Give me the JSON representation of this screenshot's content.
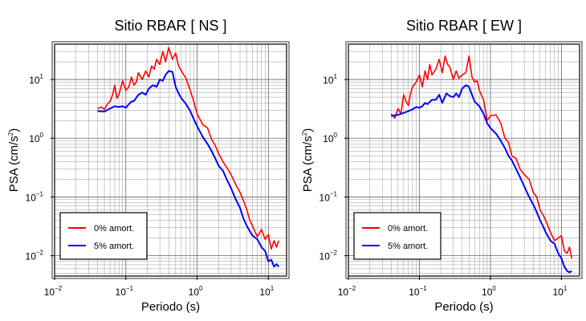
{
  "chart_data": [
    {
      "type": "line",
      "title": "Sitio RBAR [ NS ]",
      "xlabel": "Periodo (s)",
      "ylabel_main": "PSA (cm/s",
      "ylabel_sup": "2",
      "ylabel_end": ")",
      "xscale": "log",
      "yscale": "log",
      "xlim": [
        0.01,
        18
      ],
      "ylim": [
        0.0045,
        40
      ],
      "grid": true,
      "legend_position": "bottom-left",
      "x_ticks": [
        {
          "base": "10",
          "exp": "−2",
          "value": 0.01
        },
        {
          "base": "10",
          "exp": "−1",
          "value": 0.1
        },
        {
          "base": "10",
          "exp": "0",
          "value": 1
        },
        {
          "base": "10",
          "exp": "1",
          "value": 10
        }
      ],
      "y_ticks": [
        {
          "base": "10",
          "exp": "−2",
          "value": 0.01
        },
        {
          "base": "10",
          "exp": "−1",
          "value": 0.1
        },
        {
          "base": "10",
          "exp": "0",
          "value": 1
        },
        {
          "base": "10",
          "exp": "1",
          "value": 10
        }
      ],
      "series": [
        {
          "name": "0% amort.",
          "color": "#ff0000",
          "x": [
            0.04,
            0.045,
            0.05,
            0.055,
            0.06,
            0.065,
            0.07,
            0.075,
            0.08,
            0.09,
            0.1,
            0.11,
            0.12,
            0.13,
            0.14,
            0.15,
            0.17,
            0.19,
            0.21,
            0.23,
            0.25,
            0.27,
            0.3,
            0.33,
            0.36,
            0.4,
            0.45,
            0.5,
            0.55,
            0.6,
            0.65,
            0.7,
            0.8,
            0.9,
            1.0,
            1.2,
            1.4,
            1.6,
            1.8,
            2.0,
            2.3,
            2.6,
            3.0,
            3.5,
            4.0,
            4.5,
            5.0,
            5.5,
            6.0,
            7.0,
            8.0,
            9.0,
            10.0,
            11.0,
            12.0,
            13.0,
            14.0
          ],
          "y": [
            3.2,
            3.4,
            3.1,
            3.8,
            4.2,
            5.5,
            8.0,
            4.8,
            5.5,
            9.5,
            6.5,
            7.5,
            11.0,
            8.0,
            9.0,
            13.0,
            10.0,
            14.0,
            11.0,
            17.0,
            15.0,
            22.0,
            18.0,
            30.0,
            20.0,
            35.0,
            22.0,
            28.0,
            17.0,
            14.0,
            12.0,
            10.5,
            6.5,
            4.2,
            2.6,
            1.7,
            1.5,
            0.95,
            0.75,
            0.55,
            0.4,
            0.32,
            0.24,
            0.16,
            0.12,
            0.085,
            0.06,
            0.04,
            0.032,
            0.021,
            0.028,
            0.019,
            0.023,
            0.013,
            0.018,
            0.014,
            0.018
          ]
        },
        {
          "name": "5% amort.",
          "color": "#0000ff",
          "x": [
            0.04,
            0.05,
            0.06,
            0.07,
            0.08,
            0.09,
            0.1,
            0.11,
            0.12,
            0.13,
            0.15,
            0.17,
            0.19,
            0.21,
            0.24,
            0.27,
            0.3,
            0.33,
            0.36,
            0.4,
            0.45,
            0.5,
            0.55,
            0.6,
            0.7,
            0.8,
            0.9,
            1.0,
            1.2,
            1.4,
            1.6,
            1.8,
            2.0,
            2.3,
            2.6,
            3.0,
            3.5,
            4.0,
            4.5,
            5.0,
            5.5,
            6.0,
            7.0,
            8.0,
            9.0,
            10.0,
            11.0,
            12.0,
            13.0,
            14.0
          ],
          "y": [
            2.9,
            2.85,
            3.2,
            3.5,
            3.4,
            3.5,
            3.3,
            3.8,
            4.2,
            4.3,
            5.5,
            6.0,
            5.5,
            7.0,
            8.0,
            7.5,
            10.0,
            9.5,
            12.0,
            14.0,
            13.5,
            7.5,
            5.8,
            4.8,
            3.8,
            2.9,
            2.1,
            1.6,
            1.05,
            0.8,
            0.6,
            0.45,
            0.34,
            0.28,
            0.2,
            0.14,
            0.09,
            0.065,
            0.042,
            0.032,
            0.026,
            0.022,
            0.019,
            0.014,
            0.012,
            0.008,
            0.0085,
            0.0065,
            0.0072,
            0.0065
          ]
        }
      ]
    },
    {
      "type": "line",
      "title": "Sitio RBAR [ EW ]",
      "xlabel": "Periodo (s)",
      "ylabel_main": "PSA (cm/s",
      "ylabel_sup": "2",
      "ylabel_end": ")",
      "xscale": "log",
      "yscale": "log",
      "xlim": [
        0.01,
        18
      ],
      "ylim": [
        0.0045,
        40
      ],
      "grid": true,
      "legend_position": "bottom-left",
      "x_ticks": [
        {
          "base": "10",
          "exp": "−2",
          "value": 0.01
        },
        {
          "base": "10",
          "exp": "−1",
          "value": 0.1
        },
        {
          "base": "10",
          "exp": "0",
          "value": 1
        },
        {
          "base": "10",
          "exp": "1",
          "value": 10
        }
      ],
      "y_ticks": [
        {
          "base": "10",
          "exp": "−2",
          "value": 0.01
        },
        {
          "base": "10",
          "exp": "−1",
          "value": 0.1
        },
        {
          "base": "10",
          "exp": "0",
          "value": 1
        },
        {
          "base": "10",
          "exp": "1",
          "value": 10
        }
      ],
      "series": [
        {
          "name": "0% amort.",
          "color": "#ff0000",
          "x": [
            0.04,
            0.045,
            0.05,
            0.055,
            0.06,
            0.065,
            0.07,
            0.075,
            0.08,
            0.09,
            0.1,
            0.11,
            0.12,
            0.13,
            0.14,
            0.15,
            0.17,
            0.19,
            0.21,
            0.23,
            0.25,
            0.27,
            0.3,
            0.33,
            0.36,
            0.4,
            0.45,
            0.5,
            0.55,
            0.6,
            0.65,
            0.7,
            0.8,
            0.9,
            1.0,
            1.2,
            1.4,
            1.6,
            1.8,
            2.0,
            2.3,
            2.6,
            3.0,
            3.5,
            4.0,
            4.5,
            5.0,
            5.5,
            6.0,
            7.0,
            8.0,
            9.0,
            10.0,
            11.0,
            12.0,
            13.0,
            14.0
          ],
          "y": [
            2.6,
            2.2,
            3.2,
            2.6,
            5.5,
            4.2,
            3.6,
            5.8,
            7.5,
            9.0,
            12.0,
            7.5,
            14.0,
            10.0,
            18.0,
            12.0,
            15.0,
            22.0,
            13.0,
            25.0,
            18.0,
            16.0,
            10.0,
            14.0,
            10.5,
            12.0,
            13.0,
            25.0,
            11.0,
            9.0,
            9.5,
            6.5,
            4.5,
            2.0,
            2.4,
            2.5,
            1.8,
            1.0,
            0.85,
            0.5,
            0.45,
            0.3,
            0.24,
            0.2,
            0.12,
            0.1,
            0.06,
            0.05,
            0.04,
            0.025,
            0.018,
            0.02,
            0.022,
            0.012,
            0.011,
            0.014,
            0.009
          ]
        },
        {
          "name": "5% amort.",
          "color": "#0000ff",
          "x": [
            0.04,
            0.05,
            0.06,
            0.07,
            0.08,
            0.09,
            0.1,
            0.11,
            0.12,
            0.13,
            0.15,
            0.17,
            0.19,
            0.21,
            0.24,
            0.27,
            0.3,
            0.33,
            0.36,
            0.4,
            0.45,
            0.5,
            0.55,
            0.6,
            0.7,
            0.8,
            0.9,
            1.0,
            1.2,
            1.4,
            1.6,
            1.8,
            2.0,
            2.3,
            2.6,
            3.0,
            3.5,
            4.0,
            4.5,
            5.0,
            5.5,
            6.0,
            7.0,
            8.0,
            9.0,
            10.0,
            11.0,
            12.0,
            13.0,
            14.0
          ],
          "y": [
            2.4,
            2.5,
            2.7,
            2.9,
            3.1,
            3.4,
            3.3,
            3.5,
            4.0,
            3.8,
            4.5,
            4.5,
            5.5,
            4.0,
            5.8,
            5.2,
            5.0,
            5.8,
            5.0,
            7.0,
            8.0,
            7.5,
            5.5,
            4.2,
            3.5,
            2.6,
            1.8,
            1.5,
            1.2,
            0.9,
            0.68,
            0.5,
            0.42,
            0.3,
            0.22,
            0.15,
            0.1,
            0.075,
            0.055,
            0.04,
            0.032,
            0.025,
            0.018,
            0.016,
            0.011,
            0.009,
            0.0065,
            0.0055,
            0.0052,
            0.0055
          ]
        }
      ]
    }
  ]
}
